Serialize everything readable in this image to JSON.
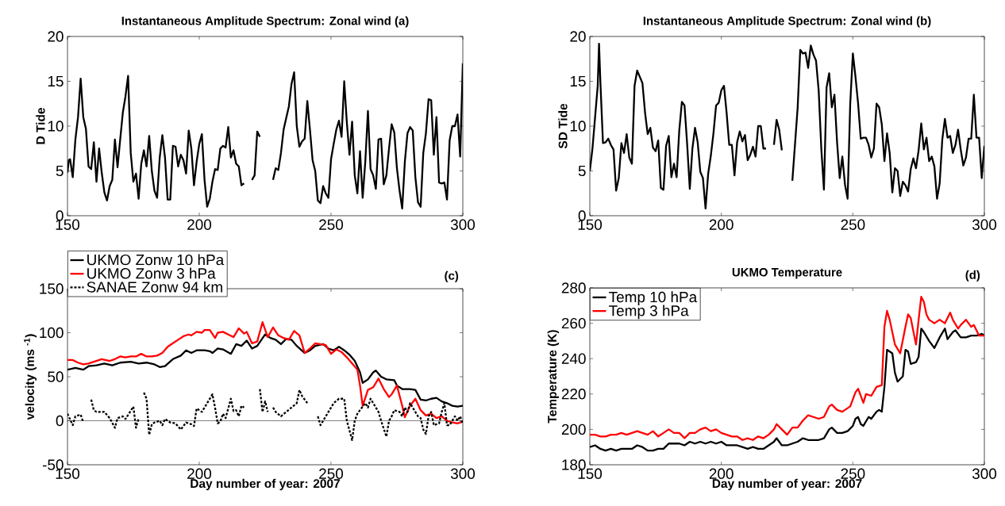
{
  "chart_data": [
    {
      "type": "line",
      "title": "Instantaneous Amplitude Spectrum: Zonal wind   (a)",
      "ylabel": "D Tide",
      "xlim": [
        150,
        300
      ],
      "ylim": [
        0,
        20
      ],
      "xticks": [
        150,
        200,
        250,
        300
      ],
      "yticks": [
        0,
        5,
        10,
        15,
        20
      ],
      "series": [
        {
          "color": "#000000",
          "x": [
            150,
            150.5,
            151,
            152,
            153,
            154,
            155,
            156,
            157,
            158,
            159,
            160,
            161,
            162,
            163,
            164,
            165,
            166,
            167,
            168,
            169,
            170,
            171,
            172,
            173,
            174,
            175,
            176,
            177,
            178,
            179,
            180,
            181,
            182,
            183,
            184,
            185,
            186,
            187,
            188,
            189,
            190,
            191,
            192,
            193,
            194,
            195,
            196,
            197,
            198,
            199,
            200,
            201,
            202,
            203,
            204,
            205,
            206,
            207,
            208,
            209,
            210,
            211,
            212,
            213,
            214,
            215,
            216,
            217,
            218,
            220,
            221,
            222,
            223,
            225,
            228,
            229,
            230,
            231,
            232,
            233,
            234,
            235,
            236,
            237,
            238,
            239,
            240,
            241,
            242,
            243,
            244,
            245,
            246,
            247,
            248,
            249,
            250,
            251,
            252,
            253,
            254,
            255,
            256,
            257,
            258,
            259,
            260,
            261,
            262,
            263,
            264,
            265,
            266,
            267,
            268,
            269,
            270,
            271,
            272,
            273,
            274,
            275,
            276,
            277,
            278,
            279,
            280,
            281,
            282,
            283,
            284,
            285,
            286,
            287,
            288,
            289,
            290,
            291,
            292,
            293,
            294,
            295,
            296,
            297,
            298,
            299,
            300
          ],
          "values": [
            4.8,
            6.2,
            6.3,
            4.3,
            8.5,
            11,
            15.3,
            11,
            9.7,
            5.5,
            5.2,
            8.2,
            3.8,
            7.5,
            4.8,
            2.6,
            1.7,
            3.3,
            4,
            8.5,
            5.4,
            8.5,
            11.5,
            13.3,
            15.6,
            7,
            3.8,
            4.7,
            1.9,
            5.8,
            7.3,
            5.5,
            8.9,
            5,
            2.8,
            2,
            6.5,
            9,
            6.5,
            1.8,
            1.8,
            7.8,
            7.7,
            5.5,
            6.8,
            6.2,
            4.7,
            9.5,
            7.5,
            3.4,
            6,
            8,
            9.1,
            4,
            1,
            1.9,
            3.8,
            5.2,
            5.1,
            7.5,
            7.8,
            7.6,
            9.9,
            6.5,
            7.3,
            5.8,
            5.5,
            3.4,
            3.6,
            null,
            4,
            4.5,
            9.4,
            8.8,
            null,
            4,
            5.3,
            5.1,
            7,
            9.6,
            10.9,
            12.2,
            14.7,
            16,
            10,
            7.7,
            8.3,
            8.6,
            12.8,
            9.6,
            6.2,
            5,
            1.7,
            1.4,
            3.3,
            2.5,
            2,
            6.3,
            8,
            9.6,
            10.6,
            8.8,
            15,
            10.4,
            6.8,
            10.5,
            4.5,
            2.5,
            7.2,
            2,
            6,
            11.7,
            5.2,
            4.5,
            3,
            8.5,
            8.6,
            3.5,
            4.5,
            7.5,
            10.2,
            9.3,
            5.3,
            2.8,
            0.8,
            6,
            9.2,
            9.9,
            9.5,
            4.3,
            1.5,
            1,
            7,
            9.2,
            13,
            12.9,
            6.8,
            11,
            3.7,
            3.6,
            3.7,
            1.8,
            8.4,
            10,
            10,
            11.3,
            6.6,
            17
          ]
        }
      ]
    },
    {
      "type": "line",
      "title": "Instantaneous Amplitude Spectrum: Zonal wind   (b)",
      "ylabel": "SD Tide",
      "xlim": [
        150,
        300
      ],
      "ylim": [
        0,
        20
      ],
      "xticks": [
        150,
        200,
        250,
        300
      ],
      "yticks": [
        0,
        5,
        10,
        15,
        20
      ],
      "series": [
        {
          "color": "#000000",
          "x": [
            150,
            151,
            152,
            153,
            153.5,
            154,
            155,
            156,
            157,
            158,
            159,
            160,
            161,
            162,
            163,
            164,
            165,
            166,
            167,
            168,
            169,
            170,
            171,
            172,
            173,
            174,
            175,
            176,
            177,
            178,
            179,
            180,
            181,
            182,
            183,
            184,
            185,
            186,
            187,
            188,
            189,
            190,
            191,
            192,
            193,
            194,
            195,
            196,
            197,
            198,
            199,
            200,
            201,
            202,
            203,
            204,
            205,
            206,
            207,
            208,
            209,
            210,
            211,
            212,
            213,
            214,
            215,
            216,
            217,
            219,
            220,
            221,
            222,
            223,
            225,
            227,
            229,
            230,
            231,
            232,
            233,
            234,
            235,
            236,
            237,
            238,
            239,
            240,
            241,
            242,
            243,
            244,
            245,
            246,
            247,
            248,
            249,
            250,
            251,
            252,
            253,
            254,
            255,
            256,
            257,
            258,
            259,
            260,
            261,
            262,
            263,
            264,
            265,
            266,
            267,
            268,
            269,
            270,
            271,
            272,
            273,
            274,
            275,
            276,
            277,
            278,
            279,
            280,
            281,
            282,
            283,
            284,
            285,
            286,
            287,
            288,
            289,
            290,
            291,
            292,
            293,
            294,
            295,
            296,
            297,
            298,
            299,
            300
          ],
          "values": [
            5,
            7.5,
            11,
            14.5,
            19.2,
            15,
            8.1,
            8.2,
            8.6,
            7.9,
            7.4,
            2.8,
            4.2,
            8.1,
            7,
            9.1,
            6.5,
            5.8,
            14.5,
            16.2,
            15.5,
            14.8,
            11.5,
            9.1,
            9.8,
            7.6,
            7.2,
            8.4,
            3.1,
            2.9,
            7.8,
            8.9,
            4.3,
            5.8,
            4.3,
            9.5,
            12.7,
            12.3,
            8,
            3,
            7.5,
            9.8,
            8.2,
            4.9,
            4.2,
            0.8,
            4.7,
            6.7,
            9.2,
            12.3,
            12.6,
            14,
            14.5,
            11.5,
            7.9,
            7.9,
            4.5,
            8.2,
            9.4,
            8.3,
            9,
            6.2,
            6.8,
            7.7,
            6.6,
            10,
            10,
            7.5,
            7.5,
            null,
            7.9,
            10.7,
            9.6,
            7.3,
            null,
            3.9,
            12,
            18.5,
            18.1,
            18.2,
            16.5,
            19,
            18,
            17.3,
            14,
            7.5,
            2.9,
            14.3,
            15.9,
            12.1,
            13.5,
            8.2,
            4.2,
            6.6,
            3.5,
            1.9,
            12.5,
            18.1,
            15.5,
            12.5,
            8.6,
            8.7,
            8.7,
            7.9,
            6.5,
            7.5,
            12.5,
            12.1,
            10.2,
            6.1,
            9.2,
            7,
            2.6,
            5.3,
            5,
            2.2,
            3.8,
            3.4,
            2.7,
            5.2,
            6.4,
            5.3,
            7.3,
            10.3,
            7.4,
            8.7,
            6.1,
            6.6,
            5.5,
            1.9,
            3.6,
            8.5,
            10.8,
            8.7,
            8.9,
            7,
            7.9,
            9.6,
            7.4,
            5.6,
            6.5,
            8.6,
            8.6,
            13.5,
            8.7,
            8.7,
            4.2,
            7.8
          ]
        }
      ]
    },
    {
      "type": "line",
      "xlabel": "Day number of year: 2007",
      "ylabel": "velocity (ms $^{-1}$)",
      "xlim": [
        150,
        300
      ],
      "ylim": [
        -50,
        150
      ],
      "xticks": [
        150,
        200,
        250,
        300
      ],
      "yticks": [
        -50,
        0,
        50,
        100,
        150
      ],
      "legend": "top left",
      "annotations": [
        "(c)"
      ],
      "ref_lines": [
        {
          "axis": "y",
          "value": 0
        }
      ],
      "series": [
        {
          "name": "UKMO Zonw 10 hPa",
          "color": "#000000",
          "x": [
            150,
            153,
            156,
            158,
            161,
            164,
            167,
            170,
            174,
            177,
            180,
            183,
            185,
            187,
            190,
            193,
            195,
            197,
            199,
            202,
            204,
            205,
            207,
            209,
            212,
            214,
            216,
            218,
            220,
            222,
            225,
            227,
            229,
            231,
            233,
            235,
            237,
            240,
            242,
            244,
            247,
            249,
            251,
            253,
            255,
            257,
            259,
            261,
            262,
            264,
            266,
            267,
            269,
            271,
            274,
            275,
            277,
            280,
            282,
            284,
            286,
            288,
            290,
            292,
            294,
            296,
            298,
            300
          ],
          "values": [
            58,
            60,
            58,
            62,
            63,
            65,
            63,
            66,
            67,
            65,
            66,
            64,
            61,
            62,
            70,
            74,
            80,
            77,
            80,
            80,
            79,
            77,
            82,
            81,
            76,
            87,
            85,
            91,
            82,
            85,
            98,
            94,
            92,
            87,
            93,
            92,
            85,
            77,
            80,
            85,
            87,
            82,
            80,
            84,
            80,
            75,
            68,
            55,
            43,
            47,
            55,
            57,
            50,
            47,
            46,
            40,
            36,
            36,
            35,
            24,
            23,
            25,
            26,
            22,
            20,
            17,
            16,
            17
          ]
        },
        {
          "name": "UKMO Zonw 3 hPa",
          "color": "#ff0000",
          "x": [
            150,
            152,
            154,
            156,
            158,
            160,
            163,
            166,
            168,
            170,
            172,
            174,
            176,
            178,
            180,
            182,
            184,
            186,
            188,
            190,
            192,
            194,
            196,
            197,
            199,
            201,
            202,
            204,
            206,
            207,
            209,
            211,
            213,
            215,
            217,
            218,
            220,
            222,
            224,
            226,
            228,
            230,
            232,
            234,
            236,
            238,
            240,
            242,
            244,
            246,
            248,
            250,
            252,
            254,
            256,
            258,
            260,
            261,
            262,
            264,
            266,
            268,
            270,
            272,
            273,
            275,
            277,
            278,
            280,
            282,
            284,
            286,
            288,
            290,
            292,
            294,
            296,
            298,
            300
          ],
          "values": [
            69,
            69,
            66,
            64,
            65,
            67,
            70,
            68,
            70,
            73,
            72,
            73,
            73,
            76,
            73,
            73,
            74,
            77,
            84,
            88,
            92,
            96,
            98,
            97,
            101,
            100,
            103,
            103,
            94,
            100,
            101,
            98,
            95,
            105,
            99,
            101,
            88,
            90,
            112,
            95,
            106,
            97,
            94,
            92,
            102,
            97,
            77,
            82,
            88,
            87,
            86,
            76,
            81,
            78,
            72,
            65,
            58,
            40,
            17,
            35,
            38,
            48,
            36,
            27,
            30,
            40,
            17,
            4,
            17,
            25,
            12,
            6,
            8,
            3,
            5,
            0,
            -2,
            -3,
            -1
          ]
        },
        {
          "name": "SANAE Zonw 94 km",
          "color": "#000000",
          "line_style": "dotted",
          "x": [
            150,
            152,
            153,
            155,
            156,
            157,
            159,
            160,
            161,
            163,
            164,
            166,
            168,
            169,
            171,
            172,
            175,
            176,
            177,
            178,
            179,
            180,
            181,
            182,
            183,
            185,
            186,
            187,
            188,
            189,
            191,
            193,
            195,
            197,
            198,
            199,
            201,
            203,
            205,
            206,
            207,
            208,
            209,
            210,
            212,
            213,
            214,
            215,
            216,
            217,
            218,
            223,
            224,
            225,
            226,
            227,
            228,
            229,
            231,
            233,
            235,
            237,
            238,
            239,
            241,
            242,
            245,
            246,
            247,
            249,
            250,
            251,
            253,
            255,
            256,
            258,
            259,
            260,
            261,
            263,
            264,
            265,
            267,
            268,
            269,
            271,
            272,
            273,
            274,
            276,
            277,
            278,
            279,
            280,
            282,
            283,
            284,
            285,
            286,
            287,
            288,
            289,
            291,
            292,
            293,
            294,
            295,
            297,
            298,
            299,
            300
          ],
          "values": [
            8,
            -5,
            5,
            7,
            -2,
            null,
            24,
            12,
            10,
            10,
            10,
            3,
            -8,
            3,
            5,
            2,
            16,
            -8,
            3,
            null,
            32,
            25,
            -16,
            -4,
            -2,
            0,
            -5,
            2,
            0,
            -2,
            -3,
            -10,
            -2,
            -4,
            -6,
            14,
            10,
            20,
            30,
            15,
            -3,
            -1,
            8,
            3,
            25,
            11,
            12,
            5,
            17,
            15,
            null,
            36,
            10,
            22,
            10,
            null,
            15,
            10,
            5,
            10,
            15,
            20,
            35,
            28,
            20,
            null,
            5,
            -5,
            0,
            10,
            15,
            20,
            25,
            25,
            0,
            -22,
            0,
            8,
            12,
            20,
            15,
            25,
            15,
            10,
            0,
            -18,
            0,
            5,
            12,
            10,
            5,
            15,
            10,
            20,
            10,
            5,
            3,
            -10,
            -15,
            5,
            10,
            -5,
            -3,
            10,
            20,
            -5,
            -5,
            5,
            0,
            5,
            -4
          ]
        }
      ]
    },
    {
      "type": "line",
      "title": "UKMO Temperature",
      "xlabel": "Day number of year: 2007",
      "ylabel": "Temperature (K)",
      "xlim": [
        150,
        300
      ],
      "ylim": [
        180,
        280
      ],
      "xticks": [
        150,
        200,
        250,
        300
      ],
      "yticks": [
        180,
        200,
        220,
        240,
        260,
        280
      ],
      "legend": "top left",
      "annotations": [
        "(d)"
      ],
      "series": [
        {
          "name": "Temp 10 hPa",
          "color": "#000000",
          "x": [
            150,
            152,
            154,
            156,
            158,
            160,
            162,
            164,
            166,
            168,
            170,
            172,
            174,
            176,
            178,
            180,
            182,
            184,
            186,
            188,
            190,
            192,
            194,
            196,
            198,
            200,
            202,
            204,
            206,
            208,
            210,
            212,
            214,
            216,
            218,
            220,
            221,
            223,
            225,
            227,
            229,
            231,
            233,
            235,
            237,
            239,
            241,
            242,
            244,
            246,
            248,
            250,
            251,
            252,
            253,
            254,
            256,
            257,
            259,
            260,
            261,
            262,
            263,
            265,
            266,
            267,
            269,
            270,
            271,
            272,
            274,
            275,
            276,
            277,
            279,
            281,
            283,
            285,
            286,
            288,
            289,
            291,
            293,
            295,
            297,
            299,
            300
          ],
          "values": [
            190,
            191,
            189,
            188,
            189,
            188,
            189,
            189,
            189,
            191,
            190,
            188,
            188,
            189,
            189,
            192,
            192,
            192,
            191,
            193,
            192,
            193,
            192,
            193,
            192,
            193,
            191,
            191,
            191,
            190,
            189,
            190,
            189,
            189,
            191,
            193,
            195,
            191,
            191,
            192,
            193,
            195,
            194,
            194,
            194,
            195,
            200,
            201,
            198,
            198,
            199,
            202,
            206,
            207,
            203,
            202,
            207,
            206,
            210,
            211,
            210,
            224,
            245,
            243,
            232,
            227,
            230,
            245,
            244,
            237,
            238,
            241,
            257,
            255,
            250,
            246,
            252,
            257,
            251,
            255,
            256,
            252,
            252,
            253,
            253,
            254,
            253
          ]
        },
        {
          "name": "Temp 3 hPa",
          "color": "#ff0000",
          "x": [
            150,
            152,
            154,
            156,
            158,
            160,
            162,
            164,
            166,
            168,
            170,
            172,
            174,
            176,
            178,
            180,
            182,
            184,
            186,
            188,
            190,
            192,
            194,
            196,
            198,
            200,
            202,
            204,
            206,
            208,
            210,
            212,
            214,
            216,
            218,
            220,
            221,
            223,
            225,
            227,
            229,
            231,
            233,
            235,
            237,
            239,
            241,
            242,
            244,
            246,
            248,
            249,
            251,
            252,
            254,
            255,
            257,
            259,
            261,
            262,
            263,
            264,
            266,
            268,
            270,
            271,
            272,
            274,
            275,
            276,
            277,
            278,
            279,
            281,
            283,
            285,
            287,
            288,
            290,
            291,
            293,
            295,
            296,
            298,
            300
          ],
          "values": [
            197,
            197,
            196,
            196,
            197,
            197,
            198,
            197,
            198,
            199,
            198,
            197,
            199,
            196,
            198,
            200,
            198,
            198,
            195,
            198,
            198,
            200,
            201,
            199,
            200,
            198,
            197,
            196,
            196,
            194,
            195,
            194,
            196,
            195,
            197,
            200,
            203,
            200,
            197,
            201,
            201,
            205,
            208,
            207,
            206,
            207,
            213,
            214,
            211,
            210,
            212,
            213,
            221,
            223,
            215,
            220,
            219,
            224,
            225,
            258,
            267,
            262,
            248,
            243,
            258,
            265,
            263,
            248,
            262,
            275,
            272,
            265,
            262,
            260,
            262,
            260,
            266,
            262,
            257,
            259,
            262,
            258,
            259,
            253,
            253
          ]
        }
      ]
    }
  ]
}
